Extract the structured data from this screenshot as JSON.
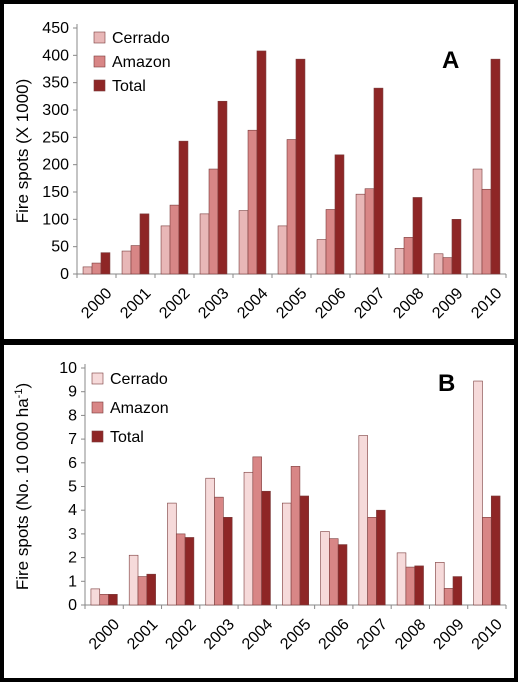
{
  "chart_data": [
    {
      "type": "bar",
      "panel_label": "A",
      "ylabel": "Fire spots (X 1000)",
      "ylim": [
        0,
        450
      ],
      "yticks": [
        0,
        50,
        100,
        150,
        200,
        250,
        300,
        350,
        400,
        450
      ],
      "grid": false,
      "legend_position": "top-left",
      "categories": [
        "2000",
        "2001",
        "2002",
        "2003",
        "2004",
        "2005",
        "2006",
        "2007",
        "2008",
        "2009",
        "2010"
      ],
      "series": [
        {
          "name": "Cerrado",
          "color": "#E8B7B7",
          "values": [
            13,
            42,
            88,
            110,
            116,
            88,
            63,
            146,
            47,
            37,
            192
          ]
        },
        {
          "name": "Amazon",
          "color": "#D88686",
          "values": [
            20,
            52,
            126,
            192,
            263,
            246,
            118,
            156,
            67,
            30,
            155
          ]
        },
        {
          "name": "Total",
          "color": "#8E2626",
          "values": [
            39,
            110,
            243,
            316,
            408,
            393,
            218,
            340,
            140,
            100,
            393
          ]
        }
      ]
    },
    {
      "type": "bar",
      "panel_label": "B",
      "ylabel": "Fire spots (No. 10 000 ha",
      "ylabel_sup": "-1",
      "ylabel_tail": ")",
      "ylim": [
        0,
        10
      ],
      "yticks": [
        0,
        1,
        2,
        3,
        4,
        5,
        6,
        7,
        8,
        9,
        10
      ],
      "grid": false,
      "legend_position": "top-left",
      "categories": [
        "2000",
        "2001",
        "2002",
        "2003",
        "2004",
        "2005",
        "2006",
        "2007",
        "2008",
        "2009",
        "2010"
      ],
      "series": [
        {
          "name": "Cerrado",
          "color": "#F6DADA",
          "values": [
            0.68,
            2.1,
            4.3,
            5.35,
            5.6,
            4.3,
            3.1,
            7.15,
            2.2,
            1.8,
            9.45
          ]
        },
        {
          "name": "Amazon",
          "color": "#D88686",
          "values": [
            0.45,
            1.2,
            3.0,
            4.55,
            6.25,
            5.85,
            2.8,
            3.7,
            1.6,
            0.7,
            3.7
          ]
        },
        {
          "name": "Total",
          "color": "#8E2626",
          "values": [
            0.45,
            1.3,
            2.85,
            3.7,
            4.8,
            4.6,
            2.55,
            4.0,
            1.65,
            1.2,
            4.6
          ]
        }
      ]
    }
  ]
}
